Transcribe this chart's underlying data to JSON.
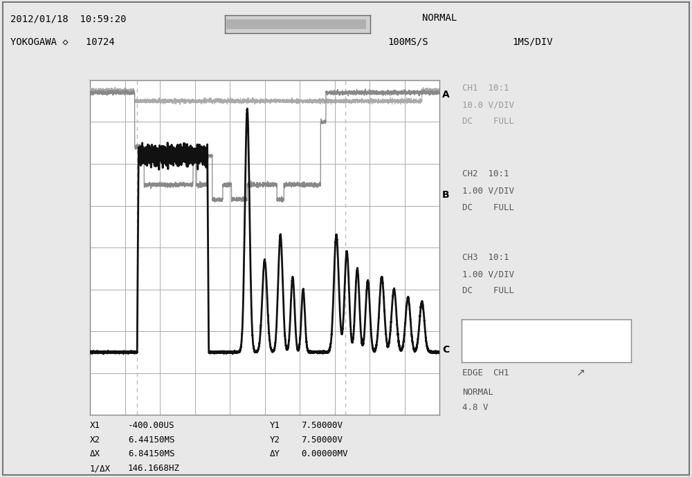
{
  "bg_color": "#e8e8e8",
  "plot_bg": "#ffffff",
  "grid_color": "#aaaaaa",
  "header_line1": "2012/01/18  10:59:20",
  "header_line2_left": "YOKOGAWA ◇   10724",
  "header_right1": "NORMAL",
  "header_right2": "100MS/S",
  "header_right3": "1MS/DIV",
  "label_A": "A",
  "label_B": "B",
  "label_C": "C",
  "ch1_info": [
    "CH1  10:1",
    "10.0 V/DIV",
    "DC    FULL"
  ],
  "ch2_info": [
    "CH2  10:1",
    "1.00 V/DIV",
    "DC    FULL"
  ],
  "ch3_info": [
    "CH3  10:1",
    "1.00 V/DIV",
    "DC    FULL"
  ],
  "edge_info": "EDGE  CH1",
  "trigger_info": "NORMAL",
  "trigger_val": "4.8 V",
  "bottom_labels": [
    "X1",
    "X2",
    "ΔX",
    "1/ΔX"
  ],
  "bottom_vals_left": [
    "-400.00US",
    "6.44150MS",
    "6.84150MS",
    "146.1668HZ"
  ],
  "bottom_labels_right": [
    "Y1",
    "Y2",
    "ΔY"
  ],
  "bottom_vals_right": [
    "7.50000V",
    "7.50000V",
    "0.00000MV"
  ],
  "n_hdiv": 10,
  "n_vdiv": 8
}
